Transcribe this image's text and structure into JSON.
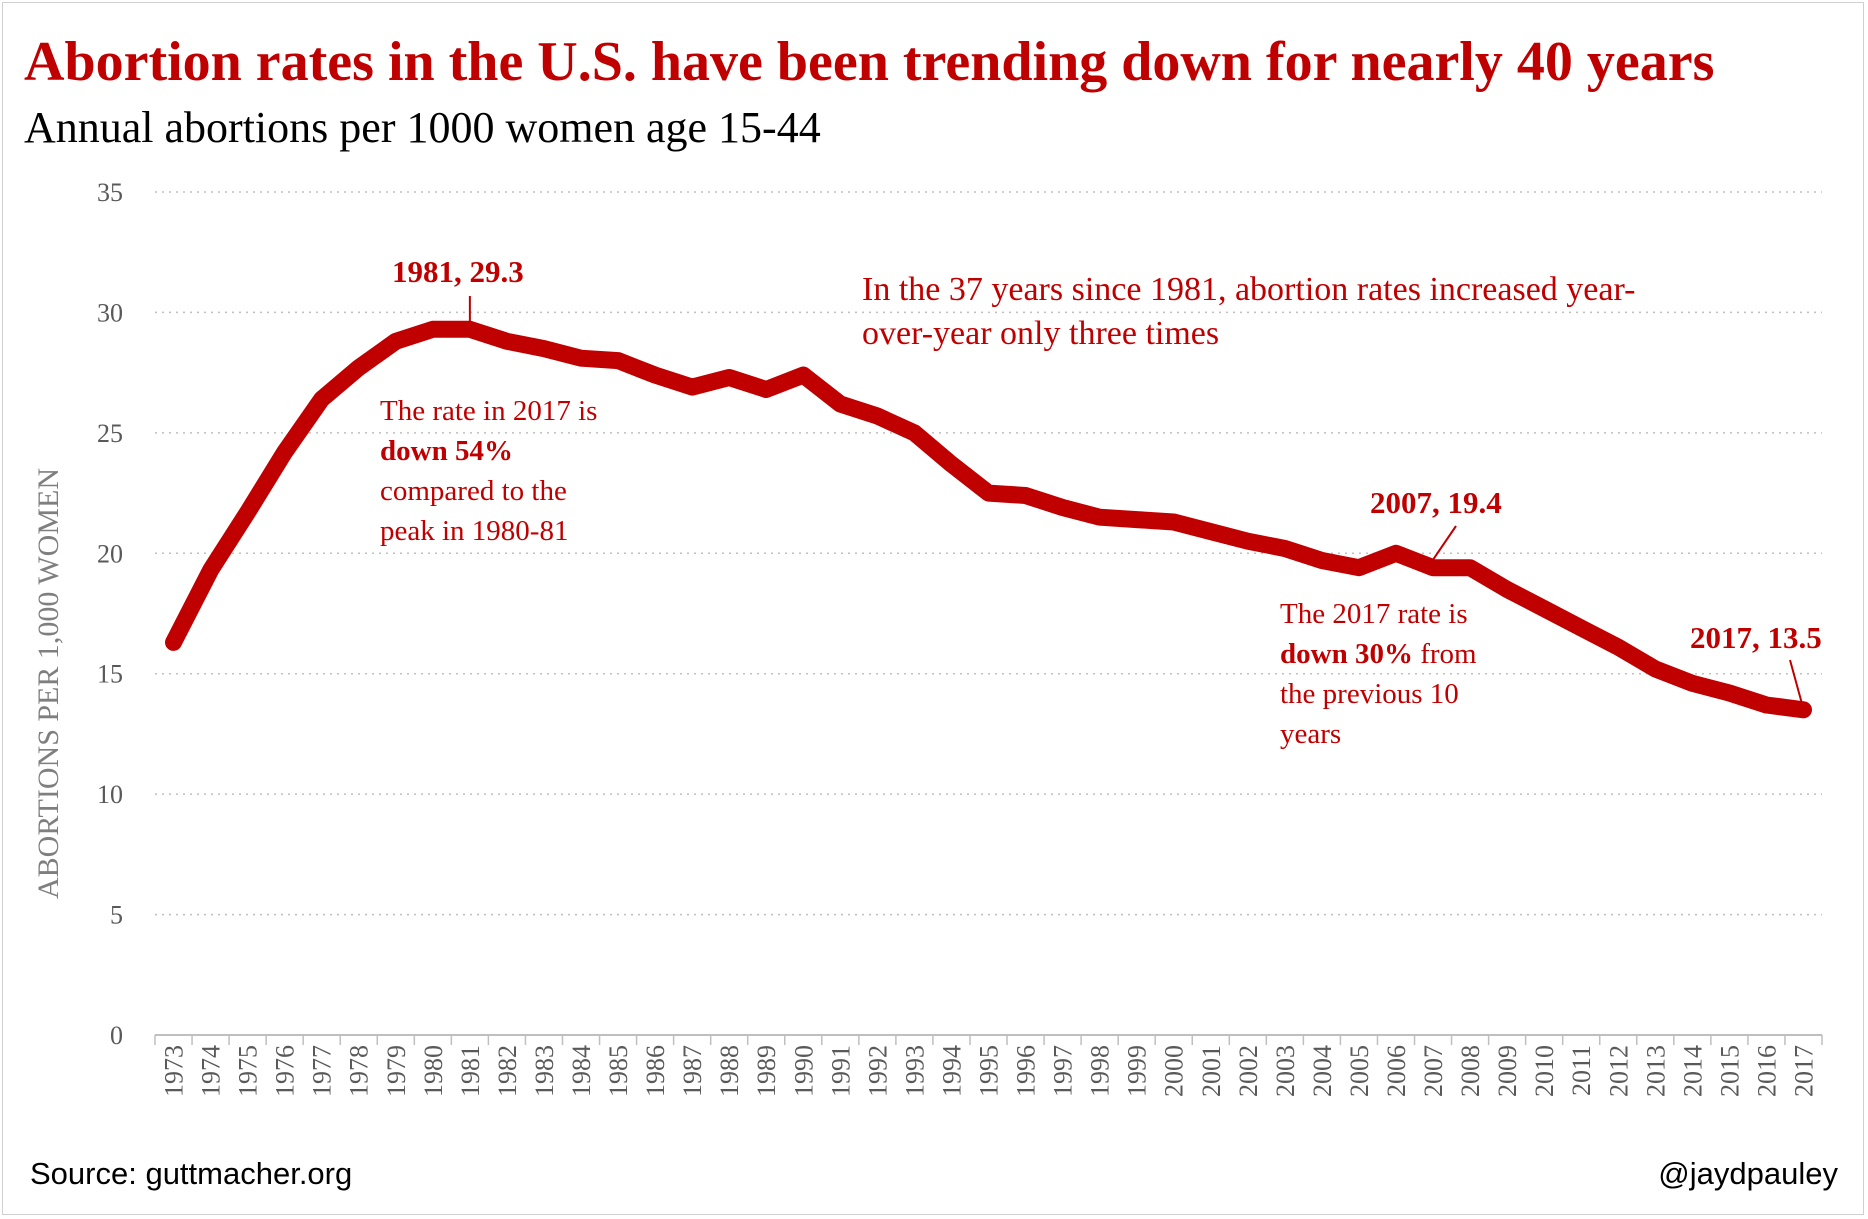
{
  "title": "Abortion rates in the U.S. have been trending down for nearly 40 years",
  "subtitle": "Annual abortions per 1000 women age 15-44",
  "source": "Source: guttmacher.org",
  "credit": "@jaydpauley",
  "colors": {
    "line": "#c00000",
    "title": "#c00000",
    "grid": "#bfbfbf",
    "axis_text": "#595959"
  },
  "chart_data": {
    "type": "line",
    "title": "Abortion rates in the U.S. have been trending down for nearly 40 years",
    "subtitle": "Annual abortions per 1000 women age 15-44",
    "xlabel": "",
    "ylabel": "ABORTIONS PER 1,000 WOMEN",
    "ylim": [
      0,
      35
    ],
    "yticks": [
      0,
      5,
      10,
      15,
      20,
      25,
      30,
      35
    ],
    "grid": "horizontal dotted",
    "legend": "none",
    "x": [
      "1973",
      "1974",
      "1975",
      "1976",
      "1977",
      "1978",
      "1979",
      "1980",
      "1981",
      "1982",
      "1983",
      "1984",
      "1985",
      "1986",
      "1987",
      "1988",
      "1989",
      "1990",
      "1991",
      "1992",
      "1993",
      "1994",
      "1995",
      "1996",
      "1997",
      "1998",
      "1999",
      "2000",
      "2001",
      "2002",
      "2003",
      "2004",
      "2005",
      "2006",
      "2007",
      "2008",
      "2009",
      "2010",
      "2011",
      "2012",
      "2013",
      "2014",
      "2015",
      "2016",
      "2017"
    ],
    "series": [
      {
        "values": [
          16.3,
          19.3,
          21.7,
          24.2,
          26.4,
          27.7,
          28.8,
          29.3,
          29.3,
          28.8,
          28.5,
          28.1,
          28.0,
          27.4,
          26.9,
          27.3,
          26.8,
          27.4,
          26.2,
          25.7,
          25.0,
          23.7,
          22.5,
          22.4,
          21.9,
          21.5,
          21.4,
          21.3,
          20.9,
          20.5,
          20.2,
          19.7,
          19.4,
          20.0,
          19.4,
          19.4,
          18.5,
          17.7,
          16.9,
          16.1,
          15.2,
          14.6,
          14.2,
          13.7,
          13.5
        ]
      }
    ],
    "annotations": {
      "peak_label": "1981, 29.3",
      "mid_label": "2007, 19.4",
      "end_label": "2017, 13.5",
      "headline_line1": "In the 37 years since 1981, abortion rates increased year-",
      "headline_line2": "over-year only three times",
      "peak_note_line1": "The rate in 2017 is",
      "peak_note_bold": "down 54%",
      "peak_note_line3": "compared to the",
      "peak_note_line4": "peak in 1980-81",
      "mid_note_line1": "The 2017 rate is",
      "mid_note_bold": "down 30%",
      "mid_note_after_bold": " from",
      "mid_note_line3": "the previous 10",
      "mid_note_line4": "years"
    }
  }
}
